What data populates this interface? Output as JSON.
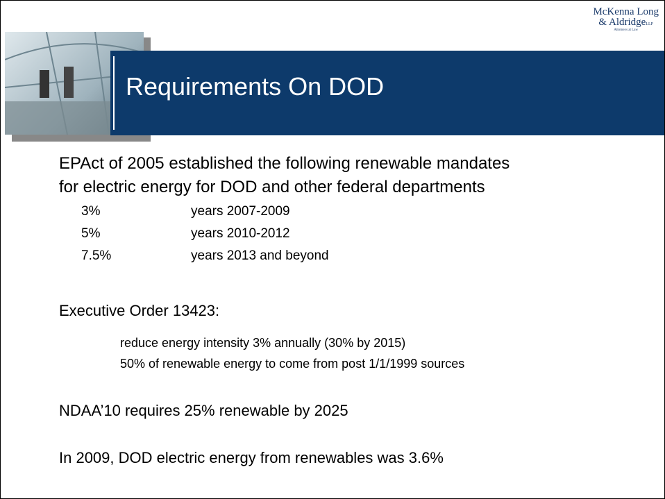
{
  "logo": {
    "line1": "McKenna Long",
    "line2": "& Aldridge",
    "suffix": "LLP",
    "tagline": "Attorneys at Law"
  },
  "title": "Requirements On DOD",
  "intro": "EPAct of 2005 established the following renewable mandates for electric energy for DOD and other federal departments",
  "mandates": [
    [
      "3%",
      "years 2007-2009"
    ],
    [
      "5%",
      "years 2010-2012"
    ],
    [
      "7.5%",
      "years 2013 and beyond"
    ]
  ],
  "order": {
    "heading": "Executive Order 13423:",
    "items": [
      "reduce energy intensity 3% annually (30% by 2015)",
      "50% of renewable energy to come from post 1/1/1999 sources"
    ]
  },
  "ndaa": "NDAA’10 requires 25% renewable by 2025",
  "status": "In 2009, DOD electric energy from renewables was 3.6%"
}
